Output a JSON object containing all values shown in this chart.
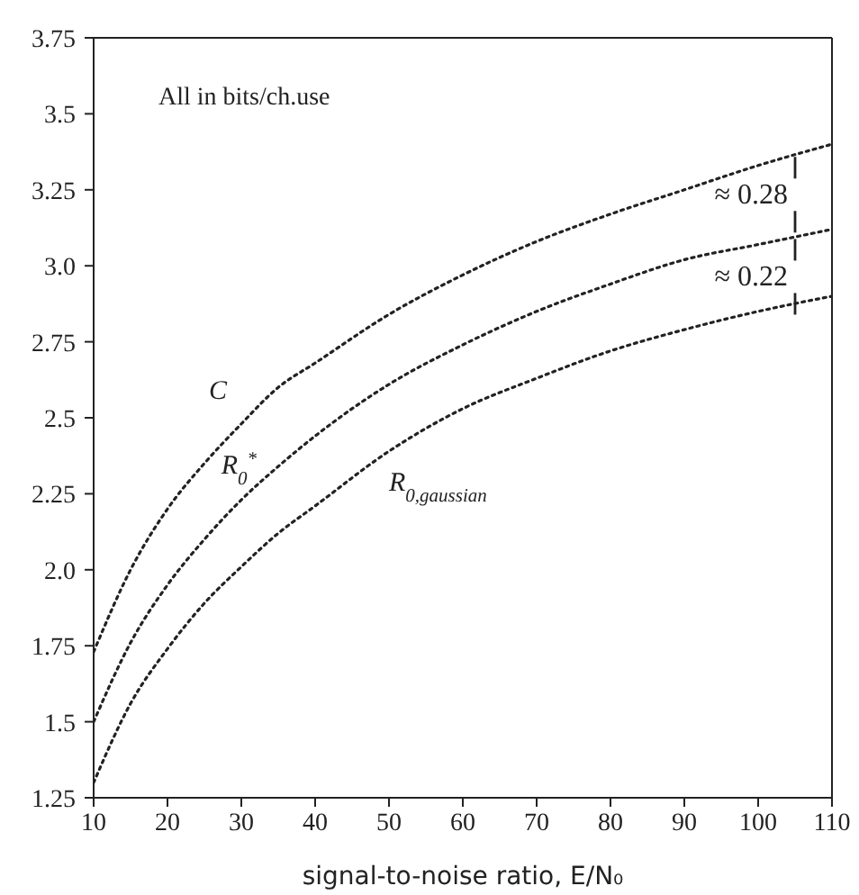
{
  "chart_data": {
    "type": "line",
    "x": [
      10,
      15,
      20,
      25,
      30,
      35,
      40,
      50,
      60,
      70,
      80,
      90,
      100,
      110
    ],
    "series": [
      {
        "name": "C",
        "color": "#222222",
        "values": [
          1.73,
          2.0,
          2.2,
          2.35,
          2.48,
          2.6,
          2.68,
          2.84,
          2.97,
          3.08,
          3.17,
          3.25,
          3.33,
          3.4
        ]
      },
      {
        "name": "R$_{0}$$^{*}$",
        "color": "#222222",
        "values": [
          1.5,
          1.76,
          1.95,
          2.1,
          2.23,
          2.34,
          2.44,
          2.61,
          2.74,
          2.85,
          2.94,
          3.02,
          3.07,
          3.12
        ]
      },
      {
        "name": "R$_{0,gaussian}$",
        "color": "#222222",
        "values": [
          1.3,
          1.56,
          1.74,
          1.89,
          2.01,
          2.12,
          2.21,
          2.39,
          2.53,
          2.63,
          2.72,
          2.79,
          2.85,
          2.9
        ]
      }
    ],
    "xlabel": "signal-to-noise ratio, E/N₀",
    "xlim": [
      10,
      110
    ],
    "xticks": [
      10,
      20,
      30,
      40,
      50,
      60,
      70,
      80,
      90,
      100,
      110
    ],
    "ylim": [
      1.25,
      3.75
    ],
    "yticks": [
      1.25,
      1.5,
      1.75,
      {
        "value": 2,
        "label": "2.0"
      },
      2.25,
      2.5,
      2.75,
      {
        "value": 3,
        "label": "3.0"
      },
      3.25,
      3.5,
      3.75
    ],
    "annotations": [
      "All in bits/ch.use",
      {
        "text": "≈ 0.28",
        "x": 105,
        "y": 3.37
      },
      {
        "text": "≈ 0.22",
        "x": 105,
        "y": 3.1
      }
    ],
    "line_style": "dotted",
    "marker": "none",
    "grid": false,
    "legend": false
  }
}
